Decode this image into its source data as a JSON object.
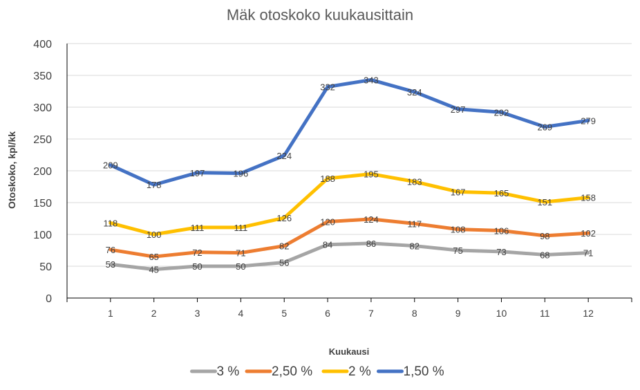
{
  "chart_data": {
    "type": "line",
    "title": "Mäk otoskoko kuukausittain",
    "xlabel": "Kuukausi",
    "ylabel": "Otoskoko, kpl/kk",
    "x": [
      1,
      2,
      3,
      4,
      5,
      6,
      7,
      8,
      9,
      10,
      11,
      12
    ],
    "ylim": [
      0,
      400
    ],
    "yticks": [
      0,
      50,
      100,
      150,
      200,
      250,
      300,
      350,
      400
    ],
    "grid": true,
    "legend_position": "bottom",
    "series": [
      {
        "name": "3 %",
        "color": "#a5a5a5",
        "values": [
          53,
          45,
          50,
          50,
          56,
          84,
          86,
          82,
          75,
          73,
          68,
          71
        ]
      },
      {
        "name": "2,50 %",
        "color": "#ed7d31",
        "values": [
          76,
          65,
          72,
          71,
          82,
          120,
          124,
          117,
          108,
          106,
          98,
          102
        ]
      },
      {
        "name": "2 %",
        "color": "#ffc000",
        "values": [
          118,
          100,
          111,
          111,
          126,
          188,
          195,
          183,
          167,
          165,
          151,
          158
        ]
      },
      {
        "name": "1,50 %",
        "color": "#4472c4",
        "values": [
          209,
          178,
          197,
          196,
          224,
          332,
          343,
          324,
          297,
          292,
          269,
          279
        ]
      }
    ]
  }
}
